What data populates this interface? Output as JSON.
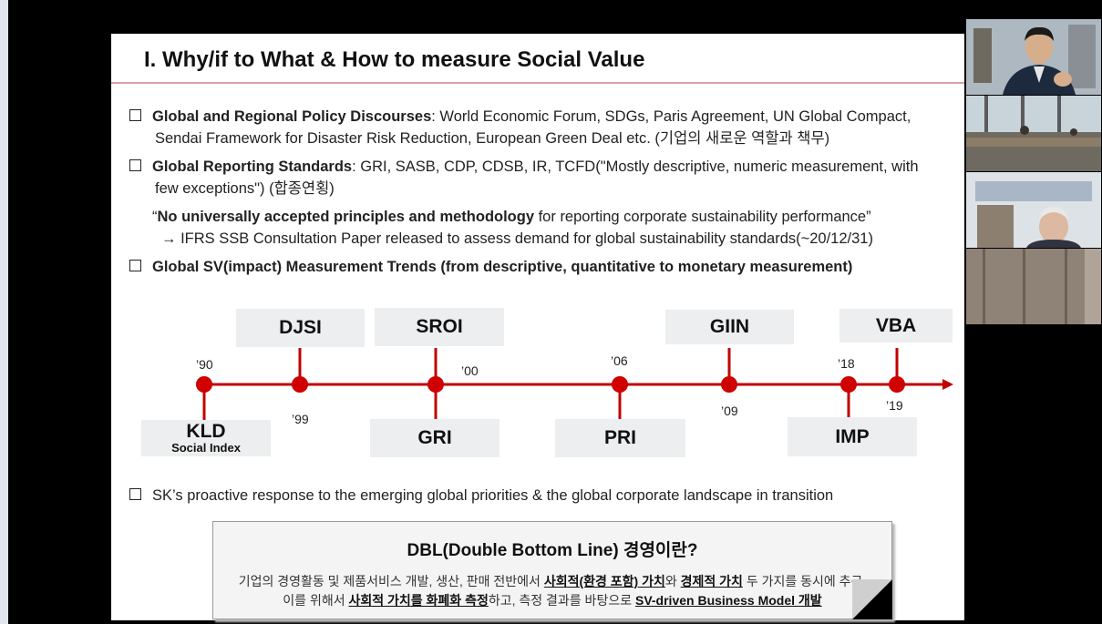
{
  "slide": {
    "title": "I. Why/if to What & How to measure Social Value",
    "bullets": [
      {
        "bold": "Global and Regional Policy Discourses",
        "text_line1": ": World Economic Forum, SDGs, Paris Agreement, UN Global Compact,",
        "text_line2": "Sendai Framework for Disaster Risk Reduction, European Green Deal etc. (기업의 새로운 역할과 책무)"
      },
      {
        "bold": "Global Reporting Standards",
        "text_line1": ": GRI, SASB, CDP, CDSB, IR, TCFD(\"Mostly descriptive, numeric measurement, with",
        "text_line2": "few exceptions\") (합종연횡)"
      }
    ],
    "quote": {
      "open": "“",
      "bold": "No universally accepted principles and methodology",
      "rest": " for reporting corporate sustainability performance”",
      "arrow_line": "→ IFRS SSB Consultation Paper released to assess demand for global sustainability standards(~20/12/31)"
    },
    "bullet3": "Global SV(impact) Measurement Trends (from descriptive, quantitative to monetary measurement)",
    "bullet4": "SK’s proactive response to the emerging global priorities & the global corporate landscape in transition"
  },
  "timeline": {
    "events": [
      {
        "label": "KLD",
        "sub": "Social Index",
        "year": "’90"
      },
      {
        "label": "DJSI",
        "year": "’99"
      },
      {
        "label": "SROI",
        "year": ""
      },
      {
        "label": "GRI",
        "year": "’00"
      },
      {
        "label": "PRI",
        "year": "’06"
      },
      {
        "label": "GIIN",
        "year": "’09"
      },
      {
        "label": "IMP",
        "year": "’18"
      },
      {
        "label": "VBA",
        "year": "’19"
      }
    ],
    "line_color": "#c00000"
  },
  "dbl": {
    "title": "DBL(Double Bottom Line) 경영이란?",
    "l1a": "기업의 경영활동 및 제품서비스 개발, 생산, 판매 전반에서 ",
    "l1b": "사회적(환경 포함) 가치",
    "l1c": "와 ",
    "l1d": "경제적 가치",
    "l1e": " 두 가지를 동시에 추구,",
    "l2a": "이를 위해서 ",
    "l2b": "사회적 가치를 화폐화 측정",
    "l2c": "하고, 측정 결과를 바탕으로 ",
    "l2d": "SV-driven Business Model 개발"
  }
}
